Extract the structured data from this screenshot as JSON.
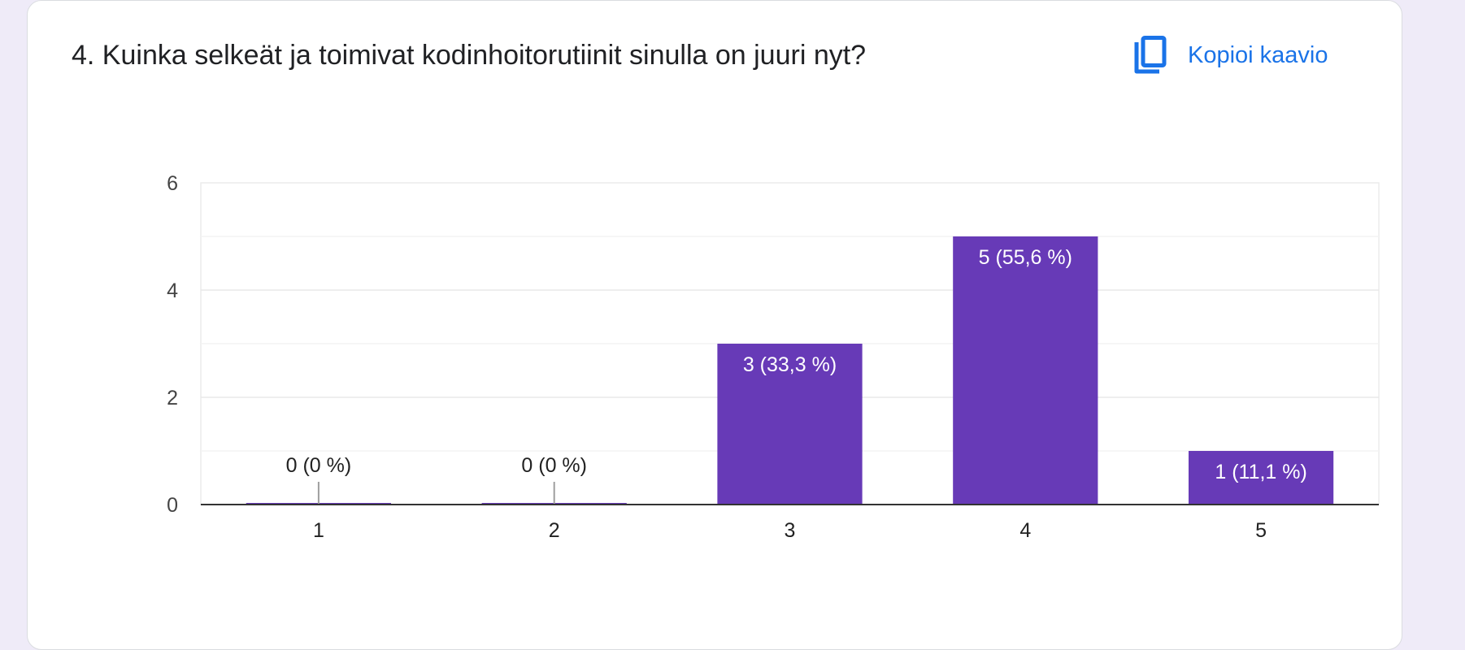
{
  "question": {
    "title": "4. Kuinka selkeät ja toimivat kodinhoitorutiinit sinulla on juuri nyt?"
  },
  "copy_button": {
    "label": "Kopioi kaavio",
    "icon": "copy-icon"
  },
  "colors": {
    "bar": "#673ab7",
    "accent": "#1a73e8",
    "page_background": "#efebf8"
  },
  "chart_data": {
    "type": "bar",
    "categories": [
      "1",
      "2",
      "3",
      "4",
      "5"
    ],
    "values": [
      0,
      0,
      3,
      5,
      1
    ],
    "data_labels": [
      "0 (0 %)",
      "0 (0 %)",
      "3 (33,3 %)",
      "5 (55,6 %)",
      "1 (11,1 %)"
    ],
    "ylim": [
      0,
      6
    ],
    "y_ticks": [
      "0",
      "2",
      "4",
      "6"
    ],
    "grid": true
  }
}
